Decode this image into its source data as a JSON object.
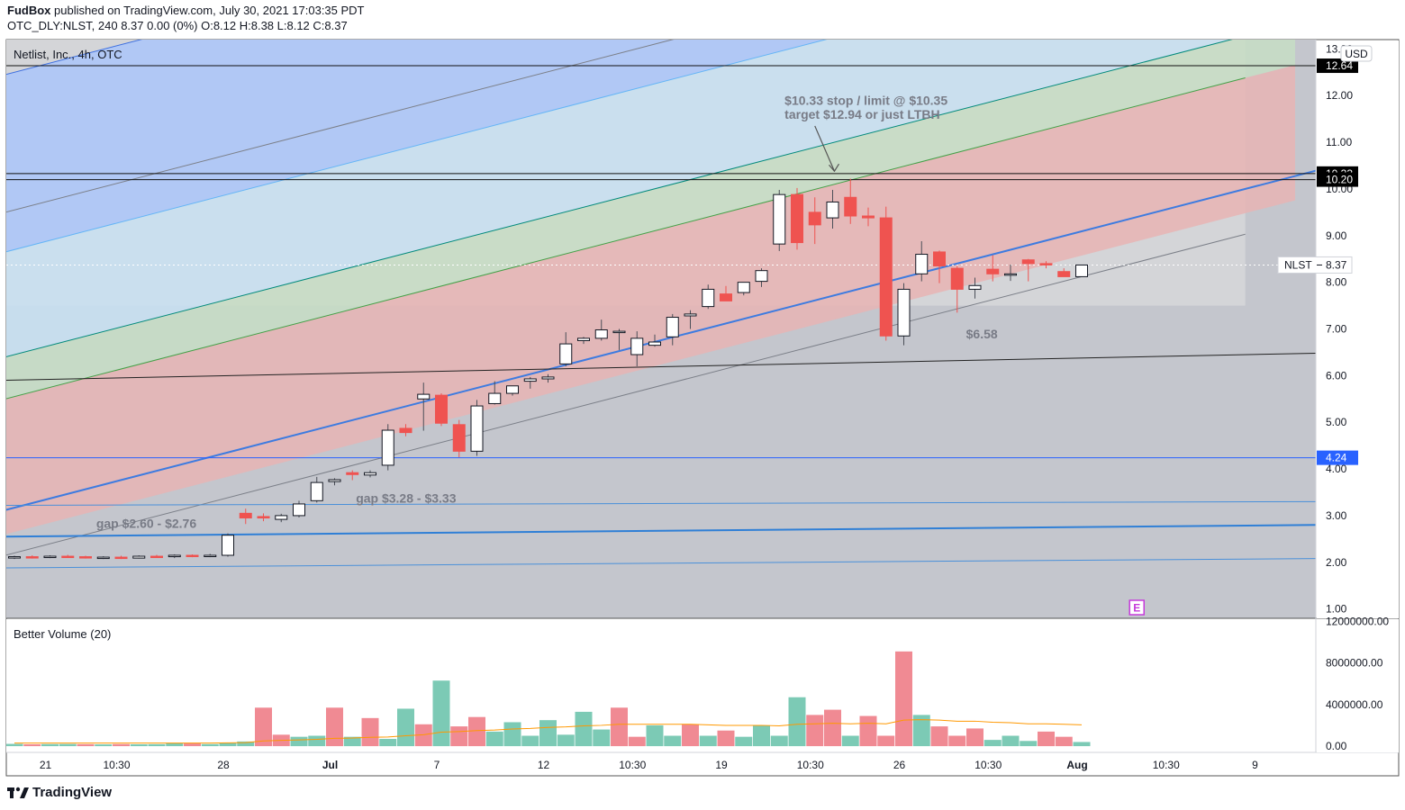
{
  "header": {
    "author": "FudBox",
    "published": "published on TradingView.com, July 30, 2021 17:03:35 PDT",
    "ohlc_line": "OTC_DLY:NLST, 240  8.37  0.00 (0%)  O:8.12  H:8.38  L:8.12  C:8.37"
  },
  "footer": {
    "logo_text": "TradingView"
  },
  "chart_data": {
    "type": "candlestick",
    "title": "Netlist, Inc., 4h, OTC",
    "currency": "USD",
    "ylim": [
      0.8,
      13.2
    ],
    "y_ticks": [
      "1.00",
      "2.00",
      "3.00",
      "4.00",
      "5.00",
      "6.00",
      "7.00",
      "8.00",
      "9.00",
      "10.00",
      "11.00",
      "12.00",
      "13.00"
    ],
    "x_ticks": [
      {
        "label": "21",
        "i": 2
      },
      {
        "label": "10:30",
        "i": 6
      },
      {
        "label": "28",
        "i": 12
      },
      {
        "label": "Jul",
        "i": 18
      },
      {
        "label": "7",
        "i": 24
      },
      {
        "label": "12",
        "i": 30
      },
      {
        "label": "10:30",
        "i": 35
      },
      {
        "label": "19",
        "i": 40
      },
      {
        "label": "10:30",
        "i": 45
      },
      {
        "label": "26",
        "i": 50
      },
      {
        "label": "10:30",
        "i": 55
      },
      {
        "label": "Aug",
        "i": 60
      },
      {
        "label": "10:30",
        "i": 65
      },
      {
        "label": "9",
        "i": 70
      }
    ],
    "candles": [
      [
        2.1,
        2.14,
        2.07,
        2.12
      ],
      [
        2.12,
        2.15,
        2.08,
        2.11
      ],
      [
        2.11,
        2.15,
        2.09,
        2.13
      ],
      [
        2.13,
        2.16,
        2.1,
        2.12
      ],
      [
        2.12,
        2.14,
        2.08,
        2.1
      ],
      [
        2.1,
        2.13,
        2.07,
        2.11
      ],
      [
        2.11,
        2.14,
        2.07,
        2.09
      ],
      [
        2.09,
        2.15,
        2.08,
        2.13
      ],
      [
        2.13,
        2.16,
        2.1,
        2.12
      ],
      [
        2.12,
        2.17,
        2.09,
        2.15
      ],
      [
        2.15,
        2.17,
        2.11,
        2.13
      ],
      [
        2.13,
        2.18,
        2.11,
        2.15
      ],
      [
        2.15,
        2.62,
        2.12,
        2.58
      ],
      [
        3.05,
        3.15,
        2.82,
        2.95
      ],
      [
        2.98,
        3.05,
        2.88,
        2.95
      ],
      [
        2.92,
        3.04,
        2.86,
        3.0
      ],
      [
        3.0,
        3.32,
        2.96,
        3.25
      ],
      [
        3.32,
        3.83,
        3.28,
        3.71
      ],
      [
        3.73,
        3.8,
        3.65,
        3.77
      ],
      [
        3.92,
        3.97,
        3.76,
        3.88
      ],
      [
        3.87,
        3.97,
        3.82,
        3.92
      ],
      [
        4.08,
        4.96,
        3.97,
        4.83
      ],
      [
        4.87,
        4.96,
        4.7,
        4.78
      ],
      [
        5.5,
        5.85,
        4.82,
        5.6
      ],
      [
        5.58,
        5.62,
        4.92,
        4.98
      ],
      [
        4.95,
        5.05,
        4.25,
        4.38
      ],
      [
        4.38,
        5.48,
        4.28,
        5.35
      ],
      [
        5.4,
        5.88,
        5.38,
        5.62
      ],
      [
        5.62,
        5.78,
        5.57,
        5.78
      ],
      [
        5.88,
        5.97,
        5.72,
        5.93
      ],
      [
        5.93,
        6.03,
        5.85,
        5.97
      ],
      [
        6.25,
        6.93,
        6.2,
        6.68
      ],
      [
        6.75,
        6.83,
        6.68,
        6.8
      ],
      [
        6.8,
        7.2,
        6.75,
        6.98
      ],
      [
        6.93,
        7.0,
        6.55,
        6.95
      ],
      [
        6.45,
        6.95,
        6.2,
        6.8
      ],
      [
        6.65,
        6.88,
        6.62,
        6.72
      ],
      [
        6.83,
        7.32,
        6.65,
        7.25
      ],
      [
        7.28,
        7.4,
        7.0,
        7.32
      ],
      [
        7.48,
        7.95,
        7.43,
        7.85
      ],
      [
        7.75,
        7.92,
        7.62,
        7.6
      ],
      [
        7.78,
        7.98,
        7.72,
        8.0
      ],
      [
        8.02,
        8.3,
        7.9,
        8.25
      ],
      [
        8.82,
        9.98,
        8.67,
        9.88
      ],
      [
        9.88,
        10.02,
        8.7,
        8.85
      ],
      [
        9.5,
        9.82,
        8.82,
        9.23
      ],
      [
        9.38,
        9.98,
        9.15,
        9.72
      ],
      [
        9.82,
        10.22,
        9.25,
        9.42
      ],
      [
        9.42,
        9.6,
        9.2,
        9.38
      ],
      [
        9.38,
        9.62,
        6.75,
        6.85
      ],
      [
        6.85,
        7.98,
        6.65,
        7.85
      ],
      [
        8.18,
        8.88,
        8.02,
        8.6
      ],
      [
        8.65,
        8.68,
        7.98,
        8.35
      ],
      [
        8.3,
        8.35,
        7.35,
        7.85
      ],
      [
        7.85,
        8.1,
        7.65,
        7.93
      ],
      [
        8.28,
        8.58,
        8.02,
        8.18
      ],
      [
        8.18,
        8.38,
        8.03,
        8.18
      ],
      [
        8.48,
        8.5,
        8.02,
        8.4
      ],
      [
        8.4,
        8.45,
        8.3,
        8.38
      ],
      [
        8.23,
        8.3,
        8.13,
        8.12
      ],
      [
        8.12,
        8.38,
        8.12,
        8.37
      ]
    ],
    "volume": {
      "label": "Better Volume (20)",
      "ylim": [
        -600000,
        12200000
      ],
      "y_ticks": [
        "0.00",
        "4000000.00",
        "8000000.00",
        "12000000.00"
      ],
      "values": [
        220000,
        180000,
        200000,
        210000,
        190000,
        170000,
        200000,
        180000,
        190000,
        300000,
        260000,
        200000,
        300000,
        450000,
        3700000,
        1100000,
        900000,
        1000000,
        3700000,
        900000,
        2700000,
        700000,
        3600000,
        2100000,
        6300000,
        1900000,
        2800000,
        1400000,
        2300000,
        1000000,
        2500000,
        1100000,
        3300000,
        1600000,
        3700000,
        900000,
        2000000,
        1000000,
        2100000,
        1000000,
        1500000,
        900000,
        2000000,
        1000000,
        4700000,
        3000000,
        3500000,
        1000000,
        2900000,
        1000000,
        9100000,
        3000000,
        1900000,
        1000000,
        1700000,
        600000,
        1000000,
        500000,
        1400000,
        900000,
        400000
      ],
      "colors": [
        "g",
        "r",
        "g",
        "g",
        "r",
        "g",
        "r",
        "g",
        "g",
        "g",
        "r",
        "g",
        "g",
        "g",
        "r",
        "r",
        "g",
        "g",
        "r",
        "g",
        "r",
        "g",
        "g",
        "r",
        "g",
        "r",
        "r",
        "g",
        "g",
        "g",
        "g",
        "g",
        "g",
        "g",
        "r",
        "r",
        "g",
        "g",
        "r",
        "g",
        "r",
        "g",
        "g",
        "g",
        "g",
        "r",
        "r",
        "g",
        "r",
        "r",
        "r",
        "g",
        "r",
        "r",
        "r",
        "g",
        "g",
        "g",
        "r",
        "r",
        "g"
      ],
      "ma": [
        300000,
        300000,
        300000,
        300000,
        300000,
        300000,
        300000,
        300000,
        300000,
        300000,
        300000,
        300000,
        320000,
        340000,
        500000,
        560000,
        600000,
        650000,
        750000,
        780000,
        850000,
        880000,
        1000000,
        1100000,
        1350000,
        1400000,
        1500000,
        1550000,
        1650000,
        1700000,
        1800000,
        1850000,
        1950000,
        2000000,
        2100000,
        2100000,
        2100000,
        2100000,
        2100000,
        2050000,
        2000000,
        2000000,
        2000000,
        1950000,
        2100000,
        2150000,
        2200000,
        2150000,
        2200000,
        2150000,
        2500000,
        2550000,
        2500000,
        2400000,
        2400000,
        2300000,
        2250000,
        2150000,
        2150000,
        2100000,
        2050000
      ]
    },
    "price_lines": [
      {
        "value": 12.64,
        "label": "12.64"
      },
      {
        "value": 10.33,
        "label": "10.33"
      },
      {
        "value": 10.2,
        "label": "10.20"
      },
      {
        "value": 4.24,
        "label": "4.24"
      }
    ],
    "last_price": {
      "symbol": "NLST",
      "value": 8.37,
      "label": "8.37"
    },
    "annotations": [
      {
        "text": "$10.33 stop / limit @ $10.35",
        "i": 43.3,
        "y": 11.8
      },
      {
        "text": "target $12.94 or just LTBH",
        "i": 43.3,
        "y": 11.5
      },
      {
        "text": "$6.58",
        "i": 53.5,
        "y": 6.8
      },
      {
        "text": "gap $3.28 - $3.33",
        "i": 19.2,
        "y": 3.28
      },
      {
        "text": "gap $2.60 - $2.76",
        "i": 4.6,
        "y": 2.74
      }
    ],
    "earnings_marker": "E",
    "colors": {
      "up": "#ffffff",
      "down": "#ef5350",
      "up_vol": "#26a69a",
      "down_vol": "#ef5350",
      "ma": "#ff9800"
    }
  }
}
